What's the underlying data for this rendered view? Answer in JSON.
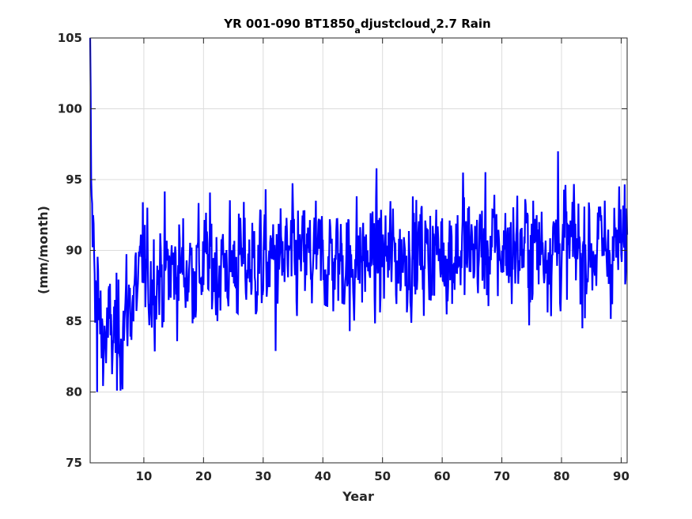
{
  "chart_data": {
    "type": "line",
    "title_parts": [
      "YR 001-090 BT1850",
      "a",
      "djustcloud",
      "v",
      "2.7 Rain"
    ],
    "xlabel": "Year",
    "ylabel": "(mm/month)",
    "xlim": [
      1,
      91
    ],
    "ylim": [
      75,
      105
    ],
    "xticks": [
      10,
      20,
      30,
      40,
      50,
      60,
      70,
      80,
      90
    ],
    "yticks": [
      75,
      80,
      85,
      90,
      95,
      100,
      105
    ],
    "grid": true,
    "series": [
      {
        "color": "#0000ff",
        "anchors_x": [
          1.0,
          1.2,
          1.5,
          2.0,
          2.5,
          3,
          4,
          5,
          6,
          7,
          8,
          9,
          10,
          12,
          15,
          20,
          25,
          30,
          35,
          40,
          45,
          50,
          55,
          60,
          65,
          70,
          75,
          80,
          85,
          91
        ],
        "anchors_mean": [
          103,
          93,
          91,
          88,
          85,
          84,
          84,
          84,
          84.5,
          85.5,
          86.5,
          87.3,
          87.8,
          88.2,
          88.6,
          88.9,
          89.0,
          89.1,
          89.2,
          89.3,
          89.4,
          89.5,
          89.8,
          89.9,
          90.0,
          90.1,
          90.2,
          90.3,
          90.2,
          90.2
        ],
        "monthly_sd": 1.9,
        "extremes": [
          {
            "x": 2.2,
            "y": 80.0
          },
          {
            "x": 5.5,
            "y": 80.1
          },
          {
            "x": 9.8,
            "y": 93.4
          },
          {
            "x": 32.1,
            "y": 82.9
          },
          {
            "x": 44.5,
            "y": 84.3
          },
          {
            "x": 63.5,
            "y": 95.5
          },
          {
            "x": 79.4,
            "y": 97.0
          },
          {
            "x": 83.5,
            "y": 84.5
          }
        ]
      }
    ]
  }
}
